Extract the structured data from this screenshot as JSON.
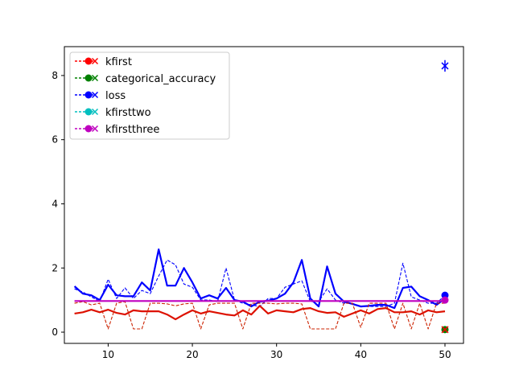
{
  "chart_data": {
    "type": "line",
    "xlim": [
      4.8,
      52.2
    ],
    "ylim": [
      -0.35,
      8.9
    ],
    "xticks": [
      10,
      20,
      30,
      40,
      50
    ],
    "yticks": [
      0,
      2,
      4,
      6,
      8
    ],
    "grid": false,
    "legend": {
      "placement": "top-left",
      "entries": [
        {
          "label": "kfirst",
          "color": "#ff0000",
          "marker": "circle-x"
        },
        {
          "label": "categorical_accuracy",
          "color": "#008000",
          "marker": "circle-x"
        },
        {
          "label": "loss",
          "color": "#0000ff",
          "marker": "circle-x"
        },
        {
          "label": "kfirsttwo",
          "color": "#00bfbf",
          "marker": "circle-x"
        },
        {
          "label": "kfirstthree",
          "color": "#bf00bf",
          "marker": "circle-x"
        }
      ]
    },
    "x": [
      6,
      7,
      8,
      9,
      10,
      11,
      12,
      13,
      14,
      15,
      16,
      17,
      18,
      19,
      20,
      21,
      22,
      23,
      24,
      25,
      26,
      27,
      28,
      29,
      30,
      31,
      32,
      33,
      34,
      35,
      36,
      37,
      38,
      39,
      40,
      41,
      42,
      43,
      44,
      45,
      46,
      47,
      48,
      49,
      50
    ],
    "series": [
      {
        "id": "loss_smooth",
        "color": "#0000ff",
        "style": "solid",
        "width": 2.2,
        "values": [
          1.43,
          1.2,
          1.15,
          1.0,
          1.48,
          1.15,
          1.12,
          1.12,
          1.55,
          1.3,
          2.58,
          1.45,
          1.45,
          2.0,
          1.55,
          1.05,
          1.15,
          1.05,
          1.38,
          1.0,
          0.95,
          0.8,
          0.95,
          0.98,
          1.05,
          1.2,
          1.55,
          2.25,
          1.05,
          0.8,
          2.05,
          1.2,
          0.95,
          0.88,
          0.8,
          0.82,
          0.85,
          0.85,
          0.75,
          1.38,
          1.42,
          1.12,
          1.0,
          0.85,
          1.05
        ]
      },
      {
        "id": "loss_raw",
        "color": "#0000ff",
        "style": "dashed",
        "width": 1.1,
        "values": [
          1.35,
          1.25,
          1.1,
          0.95,
          1.65,
          1.05,
          1.38,
          1.05,
          1.3,
          1.2,
          1.75,
          2.25,
          2.1,
          1.5,
          1.4,
          1.0,
          1.0,
          0.95,
          2.0,
          1.0,
          0.9,
          0.85,
          0.8,
          1.05,
          1.05,
          1.4,
          1.5,
          1.6,
          0.95,
          0.95,
          1.35,
          1.0,
          0.9,
          0.9,
          0.8,
          0.8,
          0.8,
          0.8,
          0.9,
          2.15,
          1.1,
          1.0,
          0.9,
          0.9,
          1.15
        ]
      },
      {
        "id": "kfirst_smooth",
        "color": "#dd1100",
        "style": "solid",
        "width": 2.2,
        "values": [
          0.58,
          0.62,
          0.7,
          0.62,
          0.7,
          0.6,
          0.55,
          0.68,
          0.65,
          0.65,
          0.65,
          0.55,
          0.4,
          0.55,
          0.68,
          0.58,
          0.65,
          0.6,
          0.55,
          0.52,
          0.68,
          0.55,
          0.82,
          0.58,
          0.68,
          0.65,
          0.62,
          0.72,
          0.75,
          0.65,
          0.6,
          0.62,
          0.48,
          0.58,
          0.68,
          0.58,
          0.72,
          0.75,
          0.62,
          0.62,
          0.65,
          0.55,
          0.68,
          0.62,
          0.65
        ]
      },
      {
        "id": "kfirst_raw",
        "color": "#cc2200",
        "style": "dashed",
        "width": 1.1,
        "values": [
          0.9,
          0.95,
          0.85,
          0.9,
          0.1,
          0.9,
          0.95,
          0.1,
          0.1,
          0.9,
          0.9,
          0.88,
          0.82,
          0.88,
          0.9,
          0.1,
          0.85,
          0.9,
          0.9,
          0.9,
          0.1,
          0.9,
          0.9,
          0.9,
          0.88,
          0.9,
          0.9,
          0.88,
          0.1,
          0.1,
          0.1,
          0.1,
          0.9,
          0.9,
          0.15,
          0.9,
          0.9,
          0.9,
          0.1,
          0.9,
          0.1,
          0.9,
          0.1,
          0.9,
          0.9
        ]
      },
      {
        "id": "kfirstthree",
        "color": "#bf00bf",
        "style": "solid",
        "width": 2.2,
        "values": [
          0.97,
          0.97,
          0.97,
          0.97,
          0.97,
          0.97,
          0.97,
          0.97,
          0.97,
          0.97,
          0.97,
          0.97,
          0.97,
          0.97,
          0.97,
          0.97,
          0.97,
          0.97,
          0.97,
          0.97,
          0.97,
          0.97,
          0.97,
          0.97,
          0.97,
          0.97,
          0.97,
          0.97,
          0.97,
          0.97,
          0.97,
          0.97,
          0.97,
          0.97,
          0.97,
          0.97,
          0.97,
          0.97,
          0.97,
          0.97,
          0.97,
          0.97,
          0.97,
          0.97,
          0.97
        ]
      }
    ],
    "endpoints": [
      {
        "id": "loss_errorbar",
        "x": 50,
        "y": 8.3,
        "yerr": 0.18,
        "color": "#0000ff",
        "marker": "x"
      },
      {
        "id": "loss_dot",
        "x": 50,
        "y": 1.15,
        "color": "#0000ff",
        "marker": "circle"
      },
      {
        "id": "kfirstthree_dot",
        "x": 50,
        "y": 1.0,
        "color": "#bf00bf",
        "marker": "circle"
      },
      {
        "id": "accuracy_dot",
        "x": 50,
        "y": 0.08,
        "color": "#008000",
        "marker": "circle"
      },
      {
        "id": "kfirst_dot",
        "x": 50,
        "y": 0.08,
        "color": "#ff0000",
        "marker": "x"
      }
    ]
  }
}
